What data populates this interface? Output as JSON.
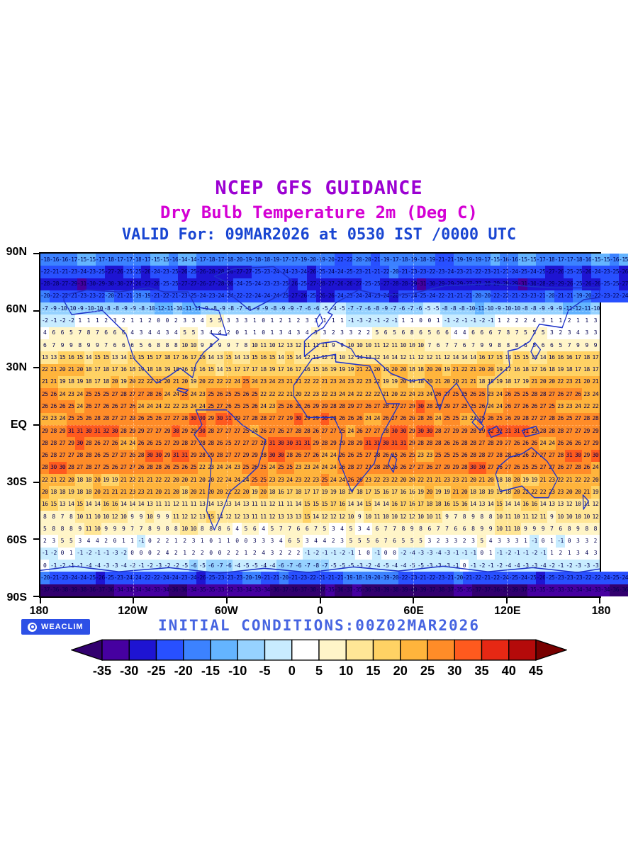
{
  "header": {
    "title": "NCEP GFS GUIDANCE",
    "subtitle": "Dry Bulb Temperature 2m (Deg C)",
    "valid_line": "VALID For: 09MAR2026 at 0530 IST /0000 UTC"
  },
  "footer": {
    "initial_conditions": "INITIAL CONDITIONS:00Z02MAR2026",
    "logo_text": "WEACLIM",
    "logo_icon": "concentric-circles-icon"
  },
  "axes": {
    "lat_labels": [
      "90N",
      "60N",
      "30N",
      "EQ",
      "30S",
      "60S",
      "90S"
    ],
    "lon_labels": [
      "180",
      "120W",
      "60W",
      "0",
      "60E",
      "120E",
      "180"
    ]
  },
  "chart_data": {
    "type": "heatmap",
    "title": "NCEP GFS GUIDANCE - Dry Bulb Temperature 2m (Deg C)",
    "valid": "09MAR2026 at 0530 IST / 0000 UTC",
    "initial_conditions": "00Z02MAR2026",
    "units": "Deg C",
    "lat_range": [
      90,
      -90
    ],
    "lon_range": [
      -180,
      180
    ],
    "grid_cols": 64,
    "zonal_profile_lats": [
      87,
      81,
      74,
      68,
      61,
      55,
      48,
      42,
      35,
      29,
      23,
      16,
      10,
      3,
      -3,
      -10,
      -16,
      -23,
      -29,
      -35,
      -42,
      -48,
      -55,
      -61,
      -68,
      -74,
      -81,
      -87
    ],
    "zonal_profile": [
      -18,
      -24,
      -27,
      -23,
      -8,
      1,
      4,
      9,
      14,
      18,
      21,
      24,
      26,
      27,
      28,
      28,
      27,
      26,
      22,
      19,
      14,
      11,
      7,
      3,
      0,
      -4,
      -22,
      -36
    ],
    "noise_amplitudes": [
      1.5,
      2,
      1
    ],
    "colorbar": {
      "tick_labels": [
        "-35",
        "-30",
        "-25",
        "-20",
        "-15",
        "-10",
        "-5",
        "0",
        "5",
        "10",
        "15",
        "20",
        "25",
        "30",
        "35",
        "40",
        "45"
      ],
      "thresholds": [
        -35,
        -30,
        -25,
        -20,
        -15,
        -10,
        -5,
        0,
        5,
        10,
        15,
        20,
        25,
        30,
        35,
        40,
        45
      ],
      "colors": [
        "#32006e",
        "#4600a0",
        "#1e14d2",
        "#2850ff",
        "#3c82ff",
        "#64b4ff",
        "#96d2ff",
        "#c8ecff",
        "#ffffff",
        "#fff5c8",
        "#ffe696",
        "#ffd264",
        "#ffb43c",
        "#ff8c28",
        "#ff5a1e",
        "#e62814",
        "#b40a0a",
        "#780000"
      ],
      "number_color": "#000050",
      "coastline_color": "#1e32c8"
    }
  }
}
